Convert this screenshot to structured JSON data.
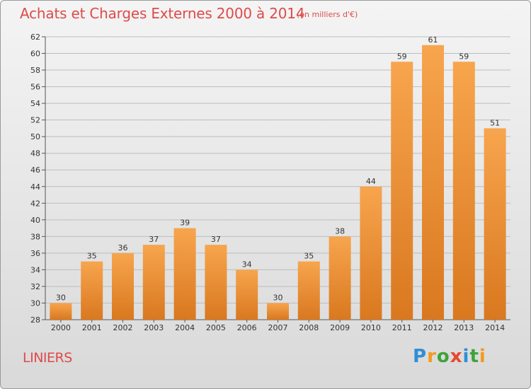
{
  "header": {
    "title": "Achats et Charges Externes 2000 à 2014",
    "subtitle": "(en milliers d'€)"
  },
  "footer": {
    "commune": "LINIERS",
    "logo": [
      "P",
      "r",
      "o",
      "x",
      "i",
      "t",
      "i"
    ]
  },
  "colors": {
    "title": "#de4b4b",
    "bar_light": "#f7a54e",
    "bar_dark": "#d9781f",
    "grid": "#bdbdbd"
  },
  "chart_data": {
    "type": "bar",
    "title": "Achats et Charges Externes 2000 à 2014",
    "xlabel": "",
    "ylabel": "",
    "categories": [
      "2000",
      "2001",
      "2002",
      "2003",
      "2004",
      "2005",
      "2006",
      "2007",
      "2008",
      "2009",
      "2010",
      "2011",
      "2012",
      "2013",
      "2014"
    ],
    "values": [
      30,
      35,
      36,
      37,
      39,
      37,
      34,
      30,
      35,
      38,
      44,
      59,
      61,
      59,
      51
    ],
    "ylim": [
      28,
      62
    ],
    "yticks": [
      28,
      30,
      32,
      34,
      36,
      38,
      40,
      42,
      44,
      46,
      48,
      50,
      52,
      54,
      56,
      58,
      60,
      62
    ],
    "grid": true,
    "data_labels": true
  }
}
